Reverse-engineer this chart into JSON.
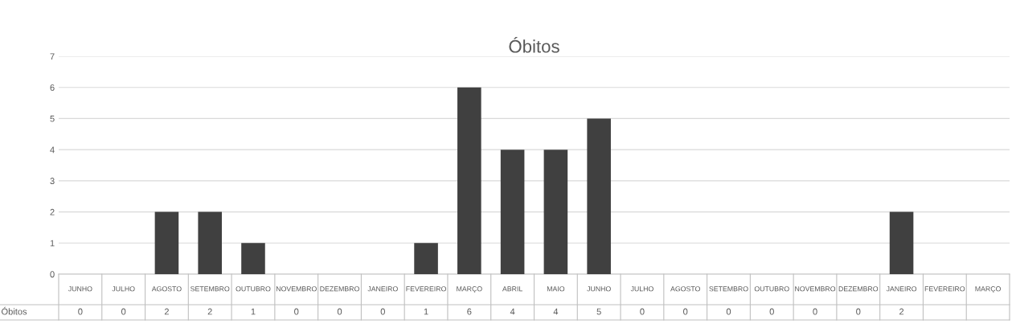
{
  "chart_data": {
    "type": "bar",
    "title": "Óbitos",
    "categories": [
      "JUNHO",
      "JULHO",
      "AGOSTO",
      "SETEMBRO",
      "OUTUBRO",
      "NOVEMBRO",
      "DEZEMBRO",
      "JANEIRO",
      "FEVEREIRO",
      "MARÇO",
      "ABRIL",
      "MAIO",
      "JUNHO",
      "JULHO",
      "AGOSTO",
      "SETEMBRO",
      "OUTUBRO",
      "NOVEMBRO",
      "DEZEMBRO",
      "JANEIRO",
      "FEVEREIRO",
      "MARÇO"
    ],
    "series": [
      {
        "name": "Óbitos",
        "color": "#404040",
        "values": [
          0,
          0,
          2,
          2,
          1,
          0,
          0,
          0,
          1,
          6,
          4,
          4,
          5,
          0,
          0,
          0,
          0,
          0,
          0,
          2,
          null,
          null
        ]
      }
    ],
    "ylim": [
      0,
      7
    ],
    "yticks": [
      0,
      1,
      2,
      3,
      4,
      5,
      6,
      7
    ],
    "grid": "y",
    "data_labels": true
  }
}
